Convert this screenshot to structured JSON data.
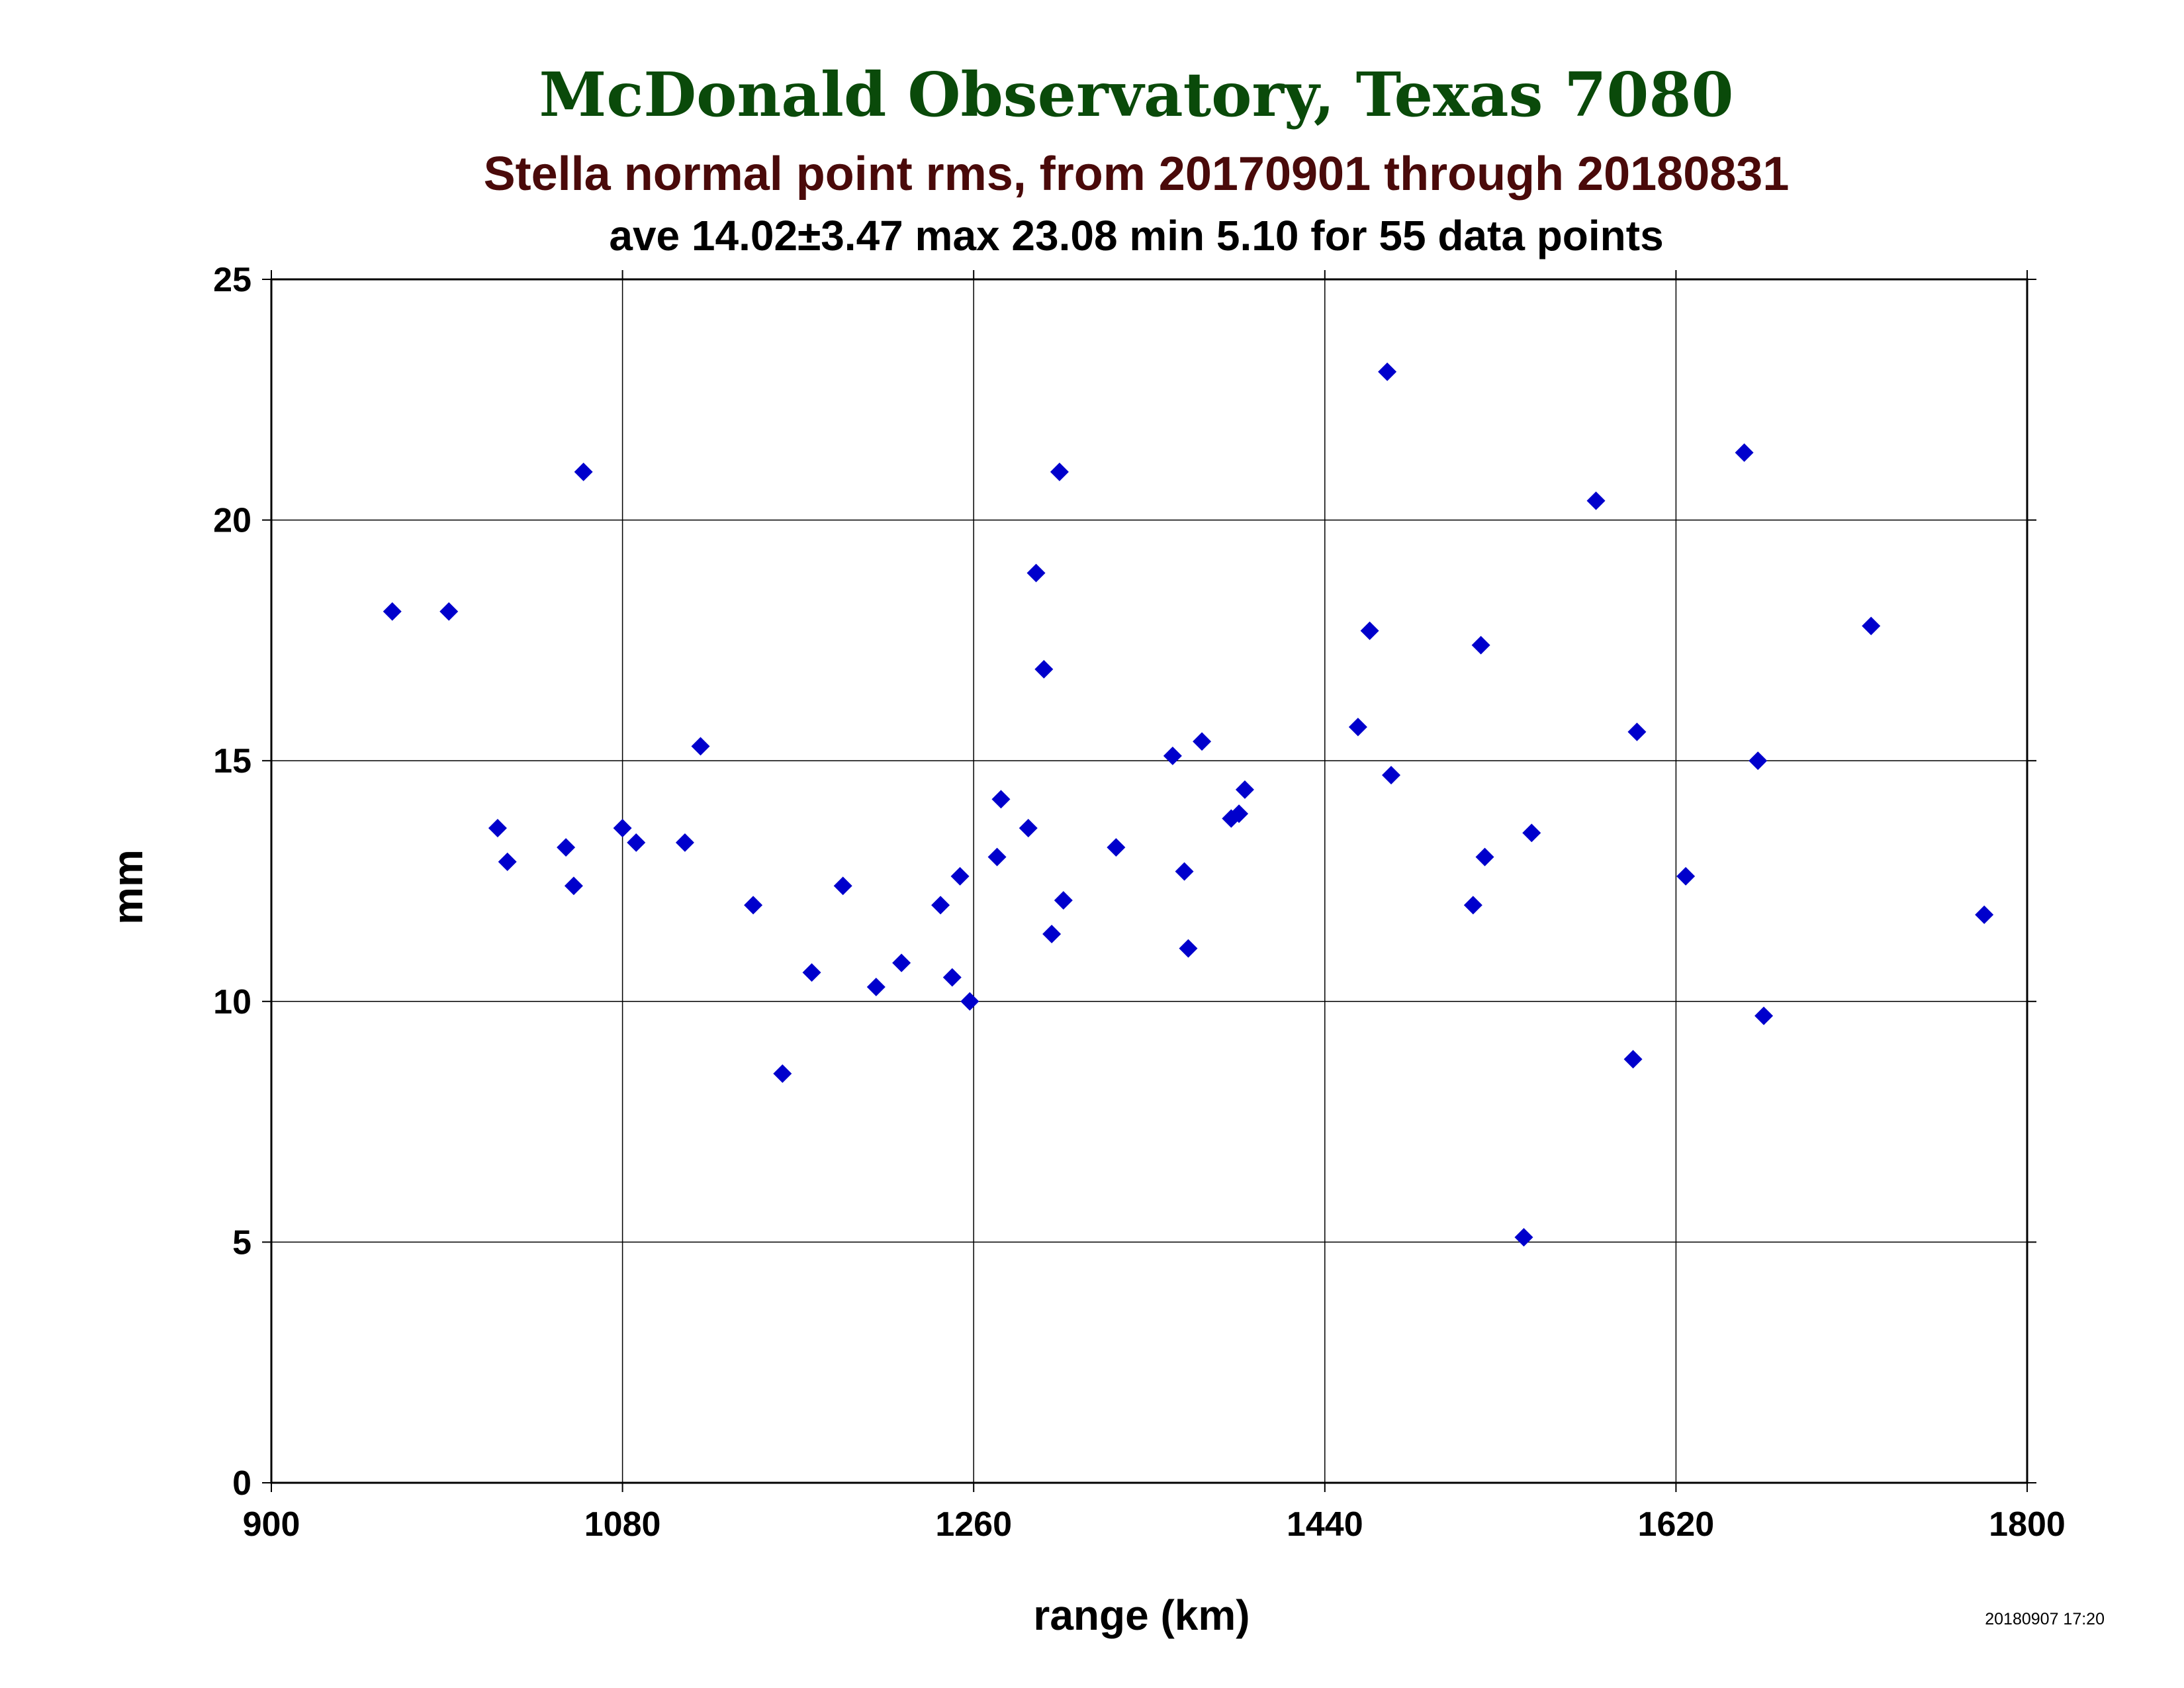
{
  "chart_data": {
    "type": "scatter",
    "title": "McDonald Observatory, Texas 7080",
    "subtitle": "Stella normal point rms, from 20170901 through 20180831",
    "stats_line": "ave 14.02±3.47 max 23.08 min 5.10 for 55 data points",
    "xlabel": "range (km)",
    "ylabel": "mm",
    "timestamp": "20180907 17:20",
    "xlim": [
      900,
      1800
    ],
    "ylim": [
      0,
      25
    ],
    "x_ticks": [
      900,
      1080,
      1260,
      1440,
      1620,
      1800
    ],
    "y_ticks": [
      0,
      5,
      10,
      15,
      20,
      25
    ],
    "grid": true,
    "marker": "diamond",
    "colors": {
      "title": "#0a4a0a",
      "subtitle": "#4a0a0a",
      "stats": "#000000",
      "marker": "#0000cc",
      "grid": "#000000"
    },
    "series": [
      {
        "x": [
          962,
          991,
          1016,
          1021,
          1051,
          1055,
          1060,
          1080,
          1087,
          1112,
          1120,
          1147,
          1162,
          1177,
          1193,
          1210,
          1223,
          1243,
          1249,
          1253,
          1258,
          1272,
          1274,
          1288,
          1292,
          1296,
          1300,
          1304,
          1306,
          1333,
          1362,
          1368,
          1370,
          1377,
          1392,
          1396,
          1399,
          1472,
          1457,
          1463,
          1474,
          1516,
          1520,
          1522,
          1542,
          1546,
          1579,
          1598,
          1600,
          1625,
          1655,
          1662,
          1665,
          1720,
          1778
        ],
        "y": [
          18.1,
          18.1,
          13.6,
          12.9,
          13.2,
          12.4,
          21.0,
          13.6,
          13.3,
          13.3,
          15.3,
          12.0,
          8.5,
          10.6,
          12.4,
          10.3,
          10.8,
          12.0,
          10.5,
          12.6,
          10.0,
          13.0,
          14.2,
          13.6,
          18.9,
          16.9,
          11.4,
          21.0,
          12.1,
          13.2,
          15.1,
          12.7,
          11.1,
          15.4,
          13.8,
          13.9,
          14.4,
          23.08,
          15.7,
          17.7,
          14.7,
          12.0,
          17.4,
          13.0,
          5.1,
          13.5,
          20.4,
          8.8,
          15.6,
          12.6,
          21.4,
          15.0,
          9.7,
          17.8,
          11.8
        ]
      }
    ]
  }
}
